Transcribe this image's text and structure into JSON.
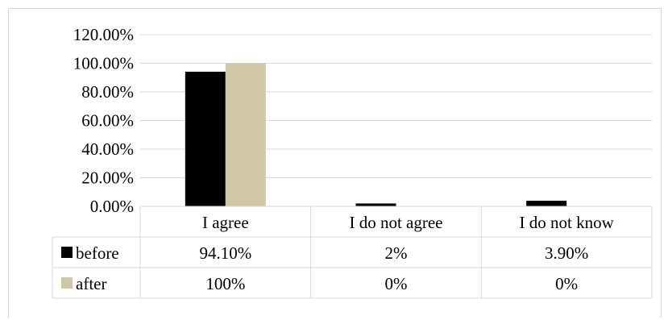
{
  "chart_data": {
    "type": "bar",
    "categories": [
      "I agree",
      "I do not agree",
      "I do not know"
    ],
    "series": [
      {
        "name": "before",
        "values": [
          94.1,
          2,
          3.9
        ],
        "labels": [
          "94.10%",
          "2%",
          "3.90%"
        ],
        "color": "#000000"
      },
      {
        "name": "after",
        "values": [
          100,
          0,
          0
        ],
        "labels": [
          "100%",
          "0%",
          "0%"
        ],
        "color": "#cfc7a6"
      }
    ],
    "y_ticks": [
      "0.00%",
      "20.00%",
      "40.00%",
      "60.00%",
      "80.00%",
      "100.00%",
      "120.00%"
    ],
    "ylim": [
      0,
      120
    ],
    "grid": true,
    "legend": "data-table"
  }
}
